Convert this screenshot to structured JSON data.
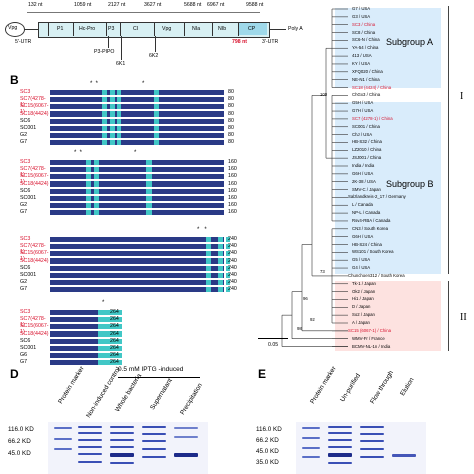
{
  "panel_a": {
    "nt_positions": [
      "132 nt",
      "1059 nt",
      "2127 nt",
      "3627 nt",
      "5688 nt",
      "6967 nt",
      "9588 nt"
    ],
    "genes": [
      "Vpg",
      "P1",
      "Hc-Pro",
      "P3",
      "CI",
      "Vpg",
      "NIa",
      "NIb",
      "CP"
    ],
    "utr5": "5'-UTR",
    "utr3": "3'-UTR",
    "poly_a": "Poly A",
    "cp_length": "798 nt",
    "labels_below": [
      "P3-PIPO",
      "6K1",
      "6K2"
    ]
  },
  "panel_b": {
    "label": "B",
    "blocks": [
      {
        "names": [
          "SC3",
          "SC7(4278-1)",
          "SC15(6067-1)",
          "SC18(4424)",
          "SC6",
          "SC001",
          "G2",
          "G7"
        ],
        "end": "80"
      },
      {
        "names": [
          "SC3",
          "SC7(4278-1)",
          "SC15(6067-1)",
          "SC18(4424)",
          "SC6",
          "SC001",
          "G2",
          "G7"
        ],
        "end": "160"
      },
      {
        "names": [
          "SC3",
          "SC7(4278-1)",
          "SC15(6067-1)",
          "SC18(4424)",
          "SC6",
          "SC001",
          "G2",
          "G7"
        ],
        "end": "240"
      },
      {
        "names": [
          "SC3",
          "SC7(4278-1)",
          "SC15(6067-1)",
          "SC18(4424)",
          "SC6",
          "SC001",
          "G6",
          "G7"
        ],
        "end": "264"
      }
    ],
    "red_names": [
      "SC3",
      "SC7(4278-1)",
      "SC15(6067-1)",
      "SC18(4424)"
    ]
  },
  "panel_c": {
    "subgroup_a": "Subgroup A",
    "subgroup_b": "Subgroup B",
    "clade_1": "I",
    "clade_2": "II",
    "scale": "0.05",
    "taxa": [
      {
        "name": "G7 / USA",
        "red": false
      },
      {
        "name": "G3 / USA",
        "red": false
      },
      {
        "name": "SC3 / China",
        "red": true
      },
      {
        "name": "SC8 / China",
        "red": false
      },
      {
        "name": "SC6-N / China",
        "red": false
      },
      {
        "name": "YA-54 / China",
        "red": false
      },
      {
        "name": "413 / USA",
        "red": false
      },
      {
        "name": "KY / USA",
        "red": false
      },
      {
        "name": "XFQ020 / China",
        "red": false
      },
      {
        "name": "NE-N1 / China",
        "red": false
      },
      {
        "name": "SC18 (4424) / China",
        "red": true
      },
      {
        "name": "ChGx3 / China",
        "red": false
      },
      {
        "name": "G5H / USA",
        "red": false
      },
      {
        "name": "G7H / USA",
        "red": false
      },
      {
        "name": "SC7 (4278-1) / China",
        "red": true
      },
      {
        "name": "SC001 / China",
        "red": false
      },
      {
        "name": "ChJ / USA",
        "red": false
      },
      {
        "name": "HB-S32 / China",
        "red": false
      },
      {
        "name": "LZ2010 / China",
        "red": false
      },
      {
        "name": "JSJ001 / China",
        "red": false
      },
      {
        "name": "India / India",
        "red": false
      },
      {
        "name": "G6H / USA",
        "red": false
      },
      {
        "name": "2K-38 / USA",
        "red": false
      },
      {
        "name": "SMV-C / Japan",
        "red": false
      },
      {
        "name": "Salzlandkreis-2_17 / Germany",
        "red": false
      },
      {
        "name": "L / Canada",
        "red": false
      },
      {
        "name": "NP-L / Canada",
        "red": false
      },
      {
        "name": "Rsv4-RBA / Canada",
        "red": false
      },
      {
        "name": "CN3 / South Korea",
        "red": false
      },
      {
        "name": "G6H / USA",
        "red": false
      },
      {
        "name": "HB-S24 / China",
        "red": false
      },
      {
        "name": "WS101 / South Korea",
        "red": false
      },
      {
        "name": "G5 / USA",
        "red": false
      },
      {
        "name": "G4 / USA",
        "red": false
      },
      {
        "name": "Chunchoen312 / South Korea",
        "red": false
      },
      {
        "name": "Tk-1 / Japan",
        "red": false
      },
      {
        "name": "Ok2 / Japan",
        "red": false
      },
      {
        "name": "Hi1 / Japan",
        "red": false
      },
      {
        "name": "D / Japan",
        "red": false
      },
      {
        "name": "So2 / Japan",
        "red": false
      },
      {
        "name": "A / Japan",
        "red": false
      },
      {
        "name": "SC15 (6067-1) / China",
        "red": true
      },
      {
        "name": "WMV-Fr / France",
        "red": false
      },
      {
        "name": "BCMV-NL-1n / India",
        "red": false
      }
    ],
    "bootstrap": [
      "100",
      "73",
      "96",
      "92",
      "98"
    ]
  },
  "panel_d": {
    "label": "D",
    "induced": "0.5 mM IPTG -induced",
    "lanes": [
      "Protein marker",
      "Non-induced control",
      "Whole bacteria",
      "Supernatant",
      "Precipitation"
    ],
    "markers": [
      "116.0 KD",
      "66.2 KD",
      "45.0 KD"
    ]
  },
  "panel_e": {
    "label": "E",
    "lanes": [
      "Protein marker",
      "Un-purified",
      "Flow through",
      "Elution"
    ],
    "markers": [
      "116.0 KD",
      "66.2 KD",
      "45.0 KD",
      "35.0 KD"
    ]
  }
}
